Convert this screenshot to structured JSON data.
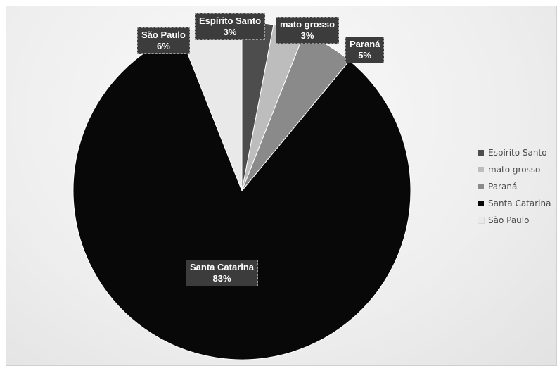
{
  "chart_data": {
    "type": "pie",
    "title": "",
    "slices": [
      {
        "label": "Espírito Santo",
        "value": 3,
        "value_label": "3%",
        "color": "#4d4d4d"
      },
      {
        "label": "mato grosso",
        "value": 3,
        "value_label": "3%",
        "color": "#bdbdbd"
      },
      {
        "label": "Paraná",
        "value": 5,
        "value_label": "5%",
        "color": "#8a8a8a"
      },
      {
        "label": "Santa Catarina",
        "value": 83,
        "value_label": "83%",
        "color": "#080808"
      },
      {
        "label": "São Paulo",
        "value": 6,
        "value_label": "6%",
        "color": "#e9e9e9"
      }
    ],
    "legend_position": "right"
  }
}
